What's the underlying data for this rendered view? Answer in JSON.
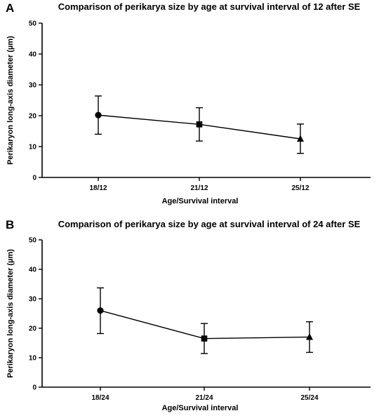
{
  "chart_data": [
    {
      "panel": "A",
      "type": "line",
      "title": "Comparison of perikarya size by age at survival interval of 12 after SE",
      "xlabel": "Age/Survival interval",
      "ylabel": "Perikaryon long-axis diameter (µm)",
      "ylim": [
        0,
        50
      ],
      "yticks": [
        "0",
        "10",
        "20",
        "30",
        "40",
        "50"
      ],
      "categories": [
        "18/12",
        "21/12",
        "25/12"
      ],
      "values": [
        20.2,
        17.2,
        12.5
      ],
      "error_upper": [
        26.4,
        22.6,
        17.3
      ],
      "error_lower": [
        14.0,
        11.8,
        7.8
      ],
      "markers": [
        "circle",
        "square",
        "triangle"
      ]
    },
    {
      "panel": "B",
      "type": "line",
      "title": "Comparison of perikarya size by age at survival interval of 24 after SE",
      "xlabel": "Age/Survival interval",
      "ylabel": "Perikaryon long-axis diameter (µm)",
      "ylim": [
        0,
        50
      ],
      "yticks": [
        "0",
        "10",
        "20",
        "30",
        "40",
        "50"
      ],
      "categories": [
        "18/24",
        "21/24",
        "25/24"
      ],
      "values": [
        26.0,
        16.5,
        17.0
      ],
      "error_upper": [
        33.7,
        21.6,
        22.2
      ],
      "error_lower": [
        18.2,
        11.4,
        11.8
      ],
      "markers": [
        "circle",
        "square",
        "triangle"
      ]
    }
  ]
}
